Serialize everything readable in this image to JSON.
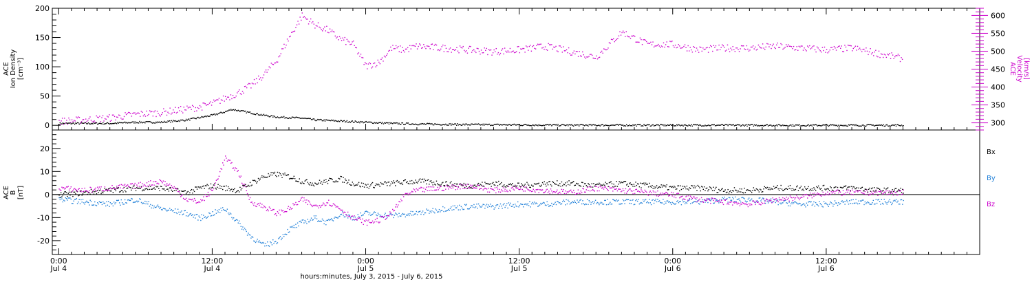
{
  "colors": {
    "frame": "#000000",
    "density": "#000000",
    "velocity": "#cc00cc",
    "bx": "#000000",
    "by": "#1e7fd8",
    "bz": "#cc00cc"
  },
  "chart_data": [
    {
      "type": "scatter",
      "panel": "top",
      "y_left": {
        "label": [
          "ACE",
          "Ion Density",
          "[cm⁻³]"
        ],
        "range": [
          -8,
          200
        ],
        "ticks": [
          0,
          50,
          100,
          150,
          200
        ],
        "tick_labels": [
          "0",
          "50",
          "100",
          "150",
          "200"
        ]
      },
      "y_right": {
        "label": [
          "ACE",
          "Velocity",
          "[km/s]"
        ],
        "range": [
          280,
          620
        ],
        "ticks": [
          300,
          350,
          400,
          450,
          500,
          550,
          600
        ],
        "tick_labels": [
          "300",
          "350",
          "400",
          "450",
          "500",
          "550",
          "600"
        ]
      },
      "series": [
        {
          "name": "",
          "axis": "left",
          "color_key": "density",
          "hours": [
            0,
            2,
            4,
            6,
            8,
            10,
            11,
            12,
            13,
            13.5,
            14,
            15,
            16,
            17,
            18,
            19,
            20,
            21,
            22,
            23,
            24,
            26,
            28,
            30,
            32,
            36,
            40,
            44,
            48,
            52,
            56,
            60,
            64,
            66
          ],
          "values": [
            4,
            4,
            4,
            6,
            6,
            10,
            14,
            18,
            24,
            28,
            26,
            22,
            18,
            15,
            14,
            13,
            10,
            9,
            8,
            7,
            6,
            4,
            3,
            2.5,
            2,
            1.5,
            1,
            1,
            1,
            1,
            0.8,
            0.8,
            0.8,
            0.8
          ]
        },
        {
          "name": "",
          "axis": "right",
          "color_key": "velocity",
          "hours": [
            0,
            2,
            4,
            6,
            8,
            10,
            11,
            12,
            13,
            14,
            15,
            16,
            17,
            18,
            19,
            20,
            21,
            22,
            23,
            24,
            25,
            26,
            27,
            28,
            30,
            32,
            34,
            36,
            38,
            40,
            42,
            44,
            46,
            48,
            50,
            52,
            54,
            56,
            58,
            60,
            62,
            64,
            66
          ],
          "values": [
            305,
            310,
            315,
            325,
            330,
            340,
            345,
            355,
            370,
            385,
            405,
            435,
            475,
            540,
            600,
            575,
            560,
            535,
            520,
            460,
            470,
            510,
            505,
            515,
            510,
            505,
            500,
            505,
            515,
            500,
            485,
            555,
            520,
            520,
            505,
            510,
            510,
            515,
            510,
            505,
            510,
            495,
            480
          ]
        }
      ]
    },
    {
      "type": "scatter",
      "panel": "bottom",
      "y_left": {
        "label": [
          "ACE",
          "B",
          "[nT]"
        ],
        "range": [
          -26,
          28
        ],
        "ticks": [
          -20,
          -10,
          0,
          10,
          20
        ],
        "tick_labels": [
          "-20",
          "-10",
          "0",
          "10",
          "20"
        ]
      },
      "legend": [
        "Bx",
        "By",
        "Bz"
      ],
      "legend_placement": "right",
      "series": [
        {
          "name": "Bx",
          "color_key": "bx",
          "hours": [
            0,
            2,
            4,
            6,
            8,
            9,
            10,
            11,
            12,
            13,
            14,
            15,
            16,
            17,
            18,
            19,
            20,
            21,
            22,
            23,
            24,
            26,
            28,
            30,
            32,
            34,
            36,
            38,
            40,
            42,
            44,
            46,
            48,
            50,
            52,
            54,
            56,
            58,
            60,
            62,
            64,
            66
          ],
          "values": [
            0,
            1,
            2,
            3,
            3,
            2,
            1,
            3,
            4,
            3,
            2,
            5,
            8,
            9,
            8,
            6,
            5,
            6,
            7,
            5,
            4,
            5,
            6,
            5,
            4,
            5,
            4,
            5,
            5,
            4,
            5,
            4,
            3,
            3,
            2,
            2,
            3,
            3,
            3,
            3,
            2,
            2
          ]
        },
        {
          "name": "By",
          "color_key": "by",
          "hours": [
            0,
            2,
            4,
            6,
            7,
            8,
            9,
            10,
            11,
            12,
            13,
            14,
            15,
            16,
            17,
            18,
            19,
            20,
            21,
            22,
            23,
            24,
            26,
            28,
            30,
            32,
            34,
            36,
            38,
            40,
            42,
            44,
            46,
            48,
            50,
            52,
            54,
            56,
            58,
            60,
            62,
            64,
            66
          ],
          "values": [
            -2,
            -3,
            -4,
            -2,
            -4,
            -6,
            -7,
            -8,
            -10,
            -8,
            -6,
            -12,
            -18,
            -22,
            -20,
            -15,
            -12,
            -10,
            -12,
            -8,
            -10,
            -8,
            -9,
            -8,
            -6,
            -5,
            -5,
            -4,
            -4,
            -3,
            -3,
            -3,
            -3,
            -3,
            -3,
            -2,
            -2,
            -3,
            -4,
            -4,
            -3,
            -3,
            -3
          ]
        },
        {
          "name": "Bz",
          "color_key": "bz",
          "hours": [
            0,
            2,
            4,
            6,
            7,
            8,
            9,
            10,
            11,
            12,
            13,
            14,
            15,
            16,
            17,
            18,
            19,
            20,
            21,
            22,
            23,
            24,
            25,
            26,
            27,
            28,
            30,
            32,
            34,
            36,
            38,
            40,
            42,
            44,
            46,
            48,
            50,
            52,
            54,
            56,
            58,
            60,
            62,
            64,
            66
          ],
          "values": [
            3,
            2,
            3,
            4,
            5,
            6,
            3,
            -2,
            -3,
            2,
            16,
            10,
            -3,
            -5,
            -8,
            -6,
            -2,
            -5,
            -3,
            -6,
            -10,
            -12,
            -11,
            -8,
            0,
            2,
            3,
            4,
            2,
            3,
            2,
            1,
            3,
            2,
            1,
            0,
            -2,
            -3,
            -4,
            -2,
            -1,
            1,
            1,
            1,
            1
          ]
        }
      ]
    }
  ],
  "x_axis": {
    "range_hours": [
      -0.5,
      72
    ],
    "tick_hours": [
      0,
      12,
      24,
      36,
      48,
      60
    ],
    "tick_labels": [
      "0:00",
      "12:00",
      "0:00",
      "12:00",
      "0:00",
      "12:00"
    ],
    "day_labels": [
      "Jul 4",
      "Jul 4",
      "Jul 5",
      "Jul 5",
      "Jul 6",
      "Jul 6"
    ],
    "title": "hours:minutes, July  3, 2015 - July  6, 2015"
  },
  "legend_labels": {
    "bx": "Bx",
    "by": "By",
    "bz": "Bz"
  }
}
